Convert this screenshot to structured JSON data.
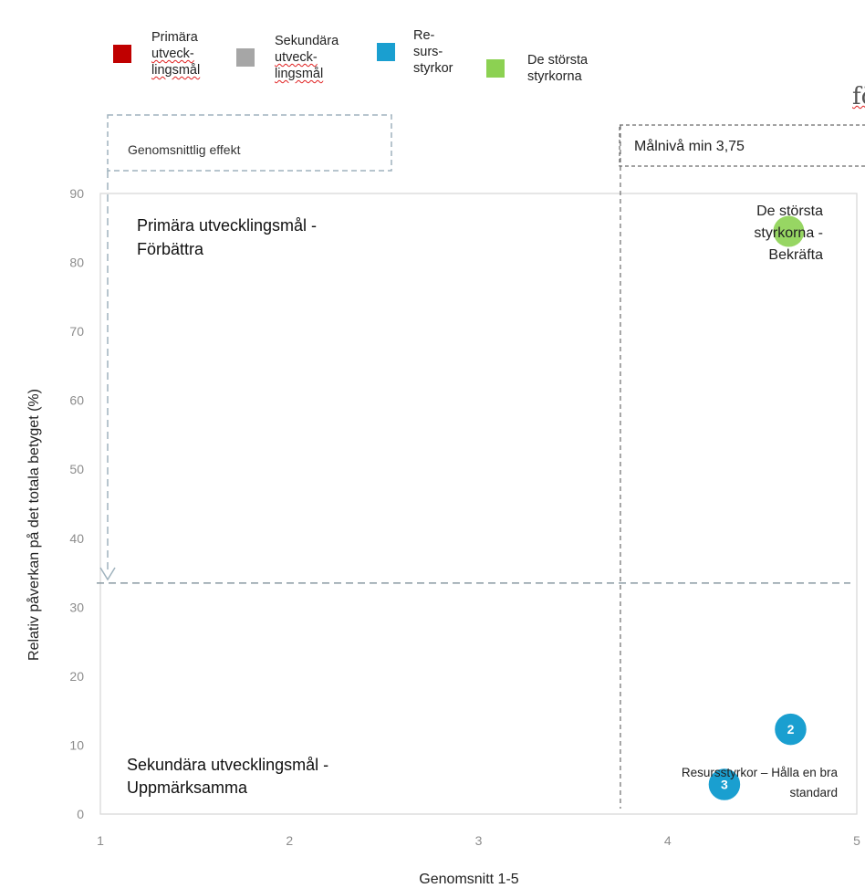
{
  "legend": [
    {
      "label": "Primära\nutveck-\nlingsmål",
      "color": "#c00000"
    },
    {
      "label": "Sekundära\nutveck-\nlingsmål",
      "color": "#a6a6a6"
    },
    {
      "label": "Re-\nsurs-\nstyrkor",
      "color": "#1a9fd0"
    },
    {
      "label": "De största\nstyrkorna",
      "color": "#8cd152"
    }
  ],
  "corner_fragment": "fö",
  "annotations": {
    "avg_effect": "Genomsnittlig effekt",
    "target_level": "Målnivå min 3,75"
  },
  "chart_data": {
    "type": "scatter",
    "title": "",
    "xlabel": "Genomsnitt 1-5",
    "ylabel": "Relativ påverkan på det totala betyget (%)",
    "xlim": [
      1,
      5
    ],
    "ylim": [
      0,
      90
    ],
    "xticks": [
      1,
      2,
      3,
      4,
      5
    ],
    "yticks": [
      0,
      10,
      20,
      30,
      40,
      50,
      60,
      70,
      80,
      90
    ],
    "grid": false,
    "reference_lines": {
      "x": 3.75,
      "y": 33.5
    },
    "quadrant_labels": {
      "top_left": "Primära utvecklingsmål -\nFörbättra",
      "top_right": "De största\nstyrkorna -\nBekräfta",
      "bottom_left": "Sekundära utvecklingsmål -\nUppmärksamma",
      "bottom_right": "Resursstyrkor – Hålla en bra\nstandard"
    },
    "points": [
      {
        "label": "",
        "x": 4.64,
        "y": 84.5,
        "color": "#8cd152"
      },
      {
        "label": "2",
        "x": 4.65,
        "y": 12.3,
        "color": "#1a9fd0"
      },
      {
        "label": "3",
        "x": 4.3,
        "y": 4.3,
        "color": "#1a9fd0"
      }
    ]
  }
}
